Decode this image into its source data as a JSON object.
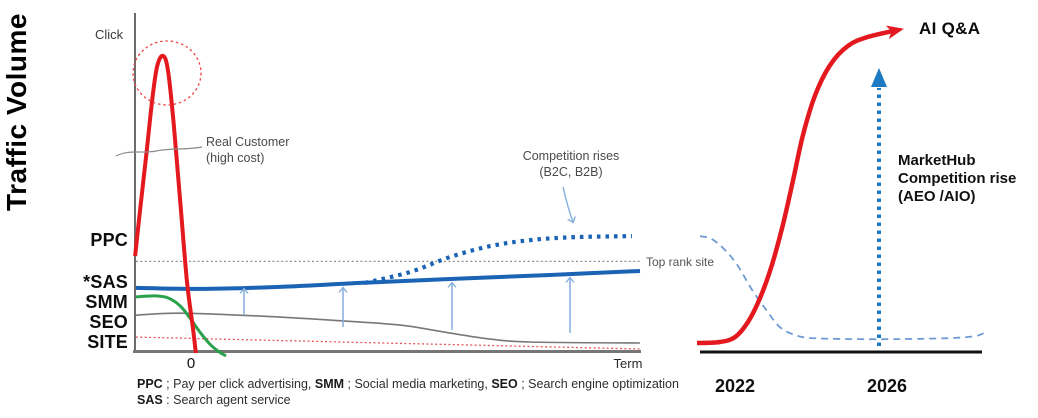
{
  "y_axis_title": "Traffic Volume",
  "left_chart": {
    "click_label": "Click",
    "origin_tick": "0",
    "x_axis_label": "Term",
    "axis_series_labels": [
      "PPC",
      "*SAS",
      "SMM",
      "SEO",
      "SITE"
    ],
    "annotations": {
      "real_customer_line1": "Real Customer",
      "real_customer_line2": "(high cost)",
      "competition_line1": "Competition rises",
      "competition_line2": "(B2C, B2B)",
      "top_rank_site": "Top rank site"
    }
  },
  "right_chart": {
    "ai_qa_label": "AI Q&A",
    "markethub_lines": [
      "MarketHub",
      "Competition rise",
      "(AEO /AIO)"
    ],
    "year_left": "2022",
    "year_right": "2026"
  },
  "legend": {
    "line1": [
      {
        "text": "PPC",
        "bold": true
      },
      {
        "text": " ; Pay per click advertising, ",
        "bold": false
      },
      {
        "text": "SMM",
        "bold": true
      },
      {
        "text": " ; Social media marketing, ",
        "bold": false
      },
      {
        "text": "SEO",
        "bold": true
      },
      {
        "text": " ; Search engine optimization",
        "bold": false
      }
    ],
    "line2": [
      {
        "text": "SAS",
        "bold": true
      },
      {
        "text": " : Search agent service",
        "bold": false
      }
    ]
  },
  "colors": {
    "red": "#e4191f",
    "blue": "#1a63b5",
    "light_blue_arrow": "#85aede",
    "steel_blue_dashed": "#6f9bd3",
    "dotted_arrow_blue": "#1d7ac2",
    "green": "#2aa14d",
    "gray_line": "#787878",
    "site_dotted_red": "#e85555",
    "axis_black": "#111111"
  },
  "chart_data": [
    {
      "id": "left",
      "type": "line",
      "title": "",
      "xlabel": "Term",
      "ylabel": "Traffic Volume",
      "x_units": "term (0 = paid-campaign end)",
      "xlim": [
        -1.25,
        10
      ],
      "ylim": [
        0,
        100
      ],
      "grid": false,
      "reference_line": {
        "label": "Top rank site",
        "y": 27.3
      },
      "series": [
        {
          "id": "ppc",
          "name": "PPC (Pay per click advertising)",
          "color": "#e4191f",
          "style": "solid",
          "width": 4,
          "points": [
            [
              -1.22,
              28.9
            ],
            [
              -1.11,
              42.8
            ],
            [
              -0.96,
              60.8
            ],
            [
              -0.84,
              75.9
            ],
            [
              -0.73,
              86.1
            ],
            [
              -0.6,
              89.2
            ],
            [
              -0.49,
              84.9
            ],
            [
              -0.36,
              68.4
            ],
            [
              -0.22,
              45.8
            ],
            [
              -0.07,
              21.7
            ],
            [
              0.07,
              6.6
            ],
            [
              0.13,
              -0.3
            ]
          ]
        },
        {
          "id": "sas",
          "name": "*SAS (Search agent service)",
          "color": "#1a63b5",
          "style": "solid",
          "width": 4,
          "points": [
            [
              -1.2,
              19.3
            ],
            [
              0.22,
              19.0
            ],
            [
              2.0,
              19.6
            ],
            [
              3.78,
              20.8
            ],
            [
              5.78,
              22.0
            ],
            [
              8.0,
              23.2
            ],
            [
              10.0,
              24.4
            ]
          ]
        },
        {
          "id": "sas_competition",
          "name": "SAS competition rises (B2C, B2B)",
          "color": "#1a63b5",
          "style": "square-dots",
          "width": 4.2,
          "points": [
            [
              3.89,
              20.8
            ],
            [
              4.89,
              24.1
            ],
            [
              5.78,
              28.6
            ],
            [
              6.67,
              31.9
            ],
            [
              7.56,
              33.7
            ],
            [
              8.56,
              34.6
            ],
            [
              9.82,
              34.9
            ]
          ]
        },
        {
          "id": "smm",
          "name": "SMM (Social media marketing)",
          "color": "#2aa14d",
          "style": "solid",
          "width": 3,
          "points": [
            [
              -1.2,
              16.6
            ],
            [
              -0.78,
              16.9
            ],
            [
              -0.49,
              16.3
            ],
            [
              -0.22,
              13.9
            ],
            [
              0.0,
              10.2
            ],
            [
              0.22,
              6.0
            ],
            [
              0.44,
              2.4
            ],
            [
              0.62,
              0.3
            ],
            [
              0.8,
              -1.2
            ]
          ]
        },
        {
          "id": "seo",
          "name": "SEO (Search engine optimization)",
          "color": "#787878",
          "style": "solid",
          "width": 1.6,
          "points": [
            [
              -1.2,
              11.1
            ],
            [
              -0.22,
              11.7
            ],
            [
              1.56,
              10.8
            ],
            [
              3.11,
              9.6
            ],
            [
              4.67,
              8.1
            ],
            [
              5.78,
              5.7
            ],
            [
              6.67,
              3.9
            ],
            [
              7.56,
              3.0
            ],
            [
              10.0,
              2.7
            ]
          ]
        },
        {
          "id": "site",
          "name": "SITE",
          "color": "#e85555",
          "style": "fine-dots",
          "width": 1.3,
          "points": [
            [
              -1.2,
              4.5
            ],
            [
              2.44,
              3.3
            ],
            [
              6.22,
              2.1
            ],
            [
              10.0,
              0.9
            ]
          ]
        },
        {
          "id": "top_rank_ref",
          "name": "Top rank site level",
          "color": "#8f8f8f",
          "style": "fine-dots",
          "width": 1.2,
          "points": [
            [
              -1.2,
              27.3
            ],
            [
              10.0,
              27.3
            ]
          ]
        }
      ],
      "annotations": [
        "Click (y-axis top)",
        "Real Customer (high cost)",
        "Competition rises (B2C, B2B)",
        "Top rank site",
        "upward arrows at x = 1.2, 3.4, 5.8, 8.4"
      ]
    },
    {
      "id": "right",
      "type": "line",
      "title": "",
      "xlabel": "year",
      "x_units": "year",
      "categories_shown": [
        "2022",
        "2026"
      ],
      "xlim": [
        2021,
        2028.6
      ],
      "ylim": [
        0,
        100
      ],
      "grid": false,
      "series": [
        {
          "id": "ai_qa",
          "name": "AI Q&A",
          "color": "#e4191f",
          "style": "solid",
          "width": 4.5,
          "arrow_end": true,
          "points": [
            [
              2021.0,
              2.7
            ],
            [
              2021.6,
              3.0
            ],
            [
              2022.0,
              4.5
            ],
            [
              2022.34,
              9.0
            ],
            [
              2022.66,
              16.3
            ],
            [
              2022.97,
              26.2
            ],
            [
              2023.26,
              38.3
            ],
            [
              2023.53,
              51.8
            ],
            [
              2023.79,
              65.4
            ],
            [
              2024.11,
              77.4
            ],
            [
              2024.5,
              86.4
            ],
            [
              2024.97,
              92.2
            ],
            [
              2025.5,
              94.9
            ],
            [
              2026.29,
              97.0
            ]
          ]
        },
        {
          "id": "top_rank_decline",
          "name": "Top rank site (declining)",
          "color": "#6f9bd3",
          "style": "dashed",
          "width": 1.8,
          "points": [
            [
              2021.08,
              34.9
            ],
            [
              2021.39,
              34.0
            ],
            [
              2021.74,
              30.7
            ],
            [
              2022.08,
              25.9
            ],
            [
              2022.45,
              18.7
            ],
            [
              2022.82,
              12.7
            ],
            [
              2023.18,
              7.5
            ],
            [
              2023.58,
              5.1
            ],
            [
              2024.03,
              4.2
            ],
            [
              2025.03,
              3.9
            ],
            [
              2026.34,
              3.9
            ],
            [
              2027.66,
              4.2
            ],
            [
              2028.32,
              4.8
            ],
            [
              2028.55,
              5.7
            ]
          ]
        }
      ],
      "annotations": [
        "MarketHub Competition rise (AEO /AIO): vertical dotted arrow at ~2026 from 0 to ~82"
      ]
    }
  ]
}
